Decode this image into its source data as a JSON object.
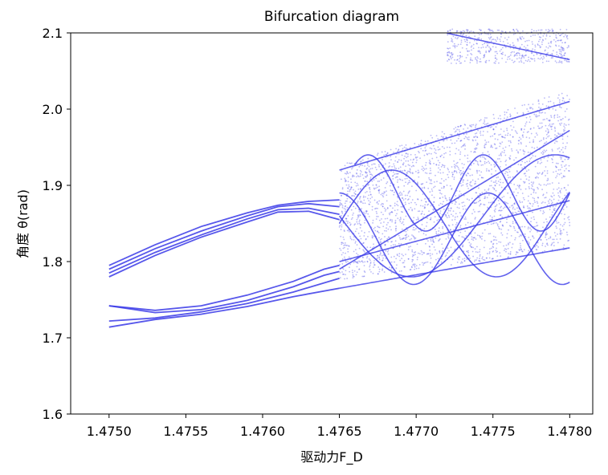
{
  "chart_data": {
    "type": "scatter",
    "title": "Bifurcation diagram",
    "xlabel": "驱动力F_D",
    "ylabel": "角度 θ(rad)",
    "xlim": [
      1.47475,
      1.47815
    ],
    "ylim": [
      1.6,
      2.1
    ],
    "xticks": [
      "1.4750",
      "1.4755",
      "1.4760",
      "1.4765",
      "1.4770",
      "1.4775",
      "1.4780"
    ],
    "xtick_values": [
      1.475,
      1.4755,
      1.476,
      1.4765,
      1.477,
      1.4775,
      1.478
    ],
    "yticks": [
      "1.6",
      "1.7",
      "1.8",
      "1.9",
      "2.0",
      "2.1"
    ],
    "ytick_values": [
      1.6,
      1.7,
      1.8,
      1.9,
      2.0,
      2.1
    ],
    "color": "#3a3ae8",
    "grid": false,
    "series": [
      {
        "points": [
          [
            1.475,
            1.795
          ],
          [
            1.4753,
            1.822
          ],
          [
            1.4756,
            1.846
          ],
          [
            1.4759,
            1.864
          ],
          [
            1.4761,
            1.874
          ],
          [
            1.4763,
            1.879
          ],
          [
            1.4765,
            1.881
          ]
        ]
      },
      {
        "points": [
          [
            1.475,
            1.79
          ],
          [
            1.4753,
            1.817
          ],
          [
            1.4756,
            1.84
          ],
          [
            1.4759,
            1.86
          ],
          [
            1.4761,
            1.872
          ],
          [
            1.4763,
            1.876
          ],
          [
            1.4765,
            1.872
          ]
        ]
      },
      {
        "points": [
          [
            1.475,
            1.785
          ],
          [
            1.4753,
            1.812
          ],
          [
            1.4756,
            1.835
          ],
          [
            1.4759,
            1.856
          ],
          [
            1.4761,
            1.868
          ],
          [
            1.4763,
            1.87
          ],
          [
            1.4765,
            1.862
          ]
        ]
      },
      {
        "points": [
          [
            1.475,
            1.78
          ],
          [
            1.4753,
            1.808
          ],
          [
            1.4756,
            1.832
          ],
          [
            1.4759,
            1.852
          ],
          [
            1.4761,
            1.865
          ],
          [
            1.4763,
            1.866
          ],
          [
            1.4765,
            1.855
          ]
        ]
      },
      {
        "points": [
          [
            1.475,
            1.742
          ],
          [
            1.4753,
            1.736
          ],
          [
            1.4756,
            1.742
          ],
          [
            1.4759,
            1.756
          ],
          [
            1.4762,
            1.774
          ],
          [
            1.4764,
            1.79
          ],
          [
            1.4765,
            1.795
          ]
        ]
      },
      {
        "points": [
          [
            1.475,
            1.742
          ],
          [
            1.4753,
            1.733
          ],
          [
            1.4756,
            1.737
          ],
          [
            1.4759,
            1.749
          ],
          [
            1.4762,
            1.767
          ],
          [
            1.4764,
            1.782
          ],
          [
            1.4765,
            1.787
          ]
        ]
      },
      {
        "points": [
          [
            1.475,
            1.722
          ],
          [
            1.4753,
            1.726
          ],
          [
            1.4756,
            1.734
          ],
          [
            1.4759,
            1.745
          ],
          [
            1.4762,
            1.76
          ],
          [
            1.4765,
            1.778
          ]
        ]
      },
      {
        "points": [
          [
            1.475,
            1.714
          ],
          [
            1.4753,
            1.724
          ],
          [
            1.4756,
            1.731
          ],
          [
            1.4759,
            1.741
          ],
          [
            1.4762,
            1.754
          ],
          [
            1.4765,
            1.765
          ]
        ]
      }
    ]
  }
}
